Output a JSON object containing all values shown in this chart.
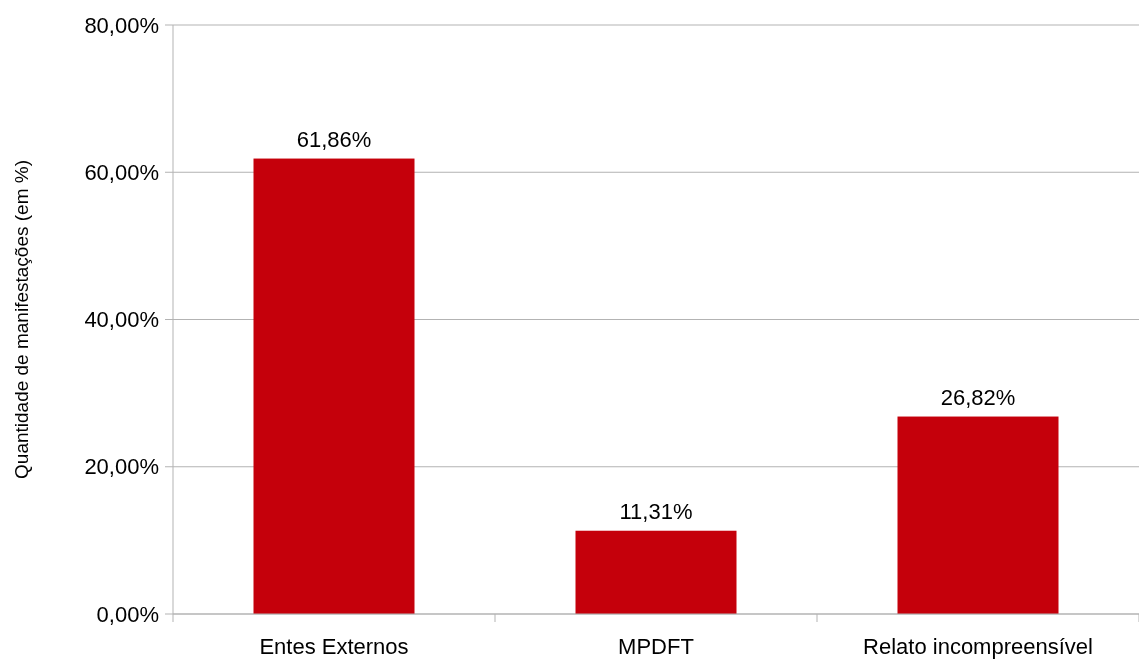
{
  "chart_data": {
    "type": "bar",
    "ylabel": "Quantidade de manifestações (em %)",
    "categories": [
      "Entes Externos",
      "MPDFT",
      "Relato incompreensível"
    ],
    "values": [
      61.86,
      11.31,
      26.82
    ],
    "value_labels": [
      "61,86%",
      "11,31%",
      "26,82%"
    ],
    "color": "#c5000b",
    "ylim": [
      0,
      80
    ],
    "yticks": [
      {
        "value": 0,
        "label": "0,00%"
      },
      {
        "value": 20,
        "label": "20,00%"
      },
      {
        "value": 40,
        "label": "40,00%"
      },
      {
        "value": 60,
        "label": "60,00%"
      },
      {
        "value": 80,
        "label": "80,00%"
      }
    ],
    "grid": "y"
  }
}
